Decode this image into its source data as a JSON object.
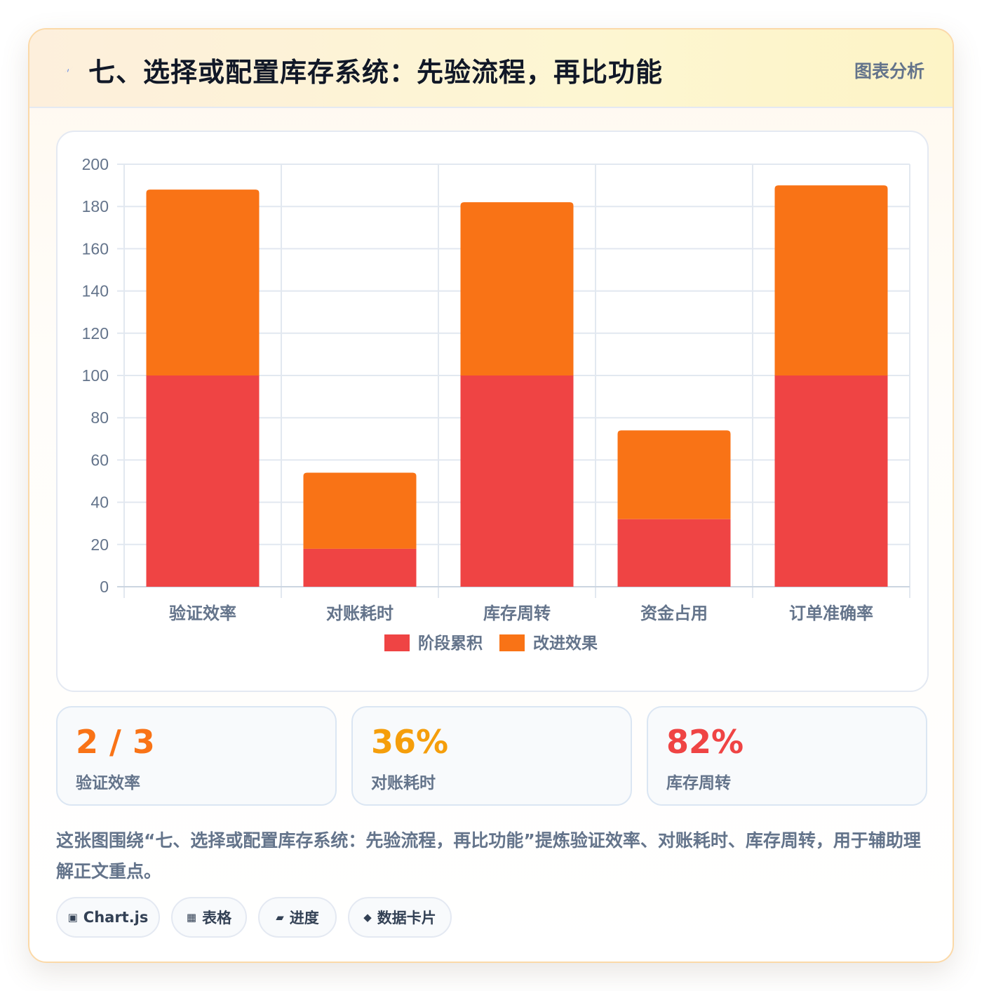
{
  "header": {
    "title": "七、选择或配置库存系统：先验流程，再比功能",
    "tag": "图表分析",
    "icon": "lightning-icon"
  },
  "chart_data": {
    "type": "bar",
    "stacked": true,
    "categories": [
      "验证效率",
      "对账耗时",
      "库存周转",
      "资金占用",
      "订单准确率"
    ],
    "series": [
      {
        "name": "阶段累积",
        "color": "#ef4444",
        "values": [
          100,
          18,
          100,
          32,
          100
        ]
      },
      {
        "name": "改进效果",
        "color": "#f97316",
        "values": [
          88,
          36,
          82,
          42,
          90
        ]
      }
    ],
    "ylim": [
      0,
      200
    ],
    "yticks": [
      0,
      20,
      40,
      60,
      80,
      100,
      120,
      140,
      160,
      180,
      200
    ],
    "grid": true,
    "legend_position": "bottom"
  },
  "stats": [
    {
      "value": "2 / 3",
      "label": "验证效率",
      "color": "#f97316"
    },
    {
      "value": "36%",
      "label": "对账耗时",
      "color": "#f59e0b"
    },
    {
      "value": "82%",
      "label": "库存周转",
      "color": "#ef4444"
    }
  ],
  "description": "这张图围绕“七、选择或配置库存系统：先验流程，再比功能”提炼验证效率、对账耗时、库存周转，用于辅助理解正文重点。",
  "tags": [
    {
      "icon": "chart-icon",
      "glyph": "▣",
      "label": "Chart.js"
    },
    {
      "icon": "table-icon",
      "glyph": "▦",
      "label": "表格"
    },
    {
      "icon": "progress-icon",
      "glyph": "▰",
      "label": "进度"
    },
    {
      "icon": "diamond-icon",
      "glyph": "◆",
      "label": "数据卡片"
    }
  ]
}
